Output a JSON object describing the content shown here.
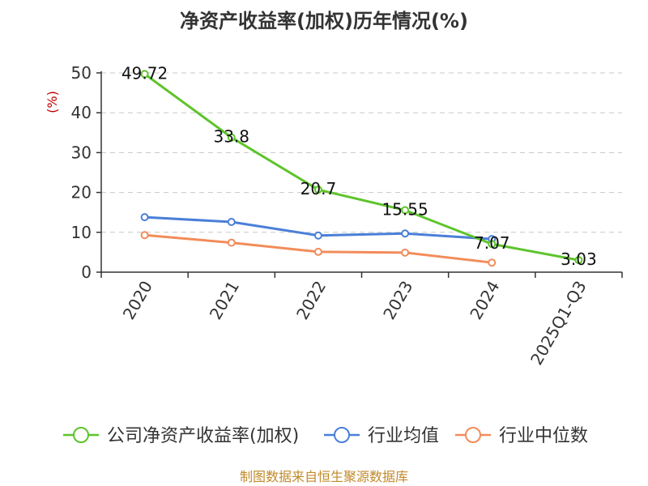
{
  "chart_data": {
    "type": "line",
    "title": "净资产收益率(加权)历年情况(%)",
    "ylabel": "(%)",
    "xlabel": "",
    "categories": [
      "2020",
      "2021",
      "2022",
      "2023",
      "2024",
      "2025Q1-Q3"
    ],
    "ylim": [
      0,
      50
    ],
    "yticks": [
      0,
      10,
      20,
      30,
      40,
      50
    ],
    "grid": true,
    "legend_position": "bottom",
    "series": [
      {
        "name": "公司净资产收益率(加权)",
        "color": "#5ec42b",
        "values": [
          49.72,
          33.8,
          20.7,
          15.55,
          7.07,
          3.03
        ],
        "labels": [
          "49.72",
          "33.8",
          "20.7",
          "15.55",
          "7.07",
          "3.03"
        ]
      },
      {
        "name": "行业均值",
        "color": "#4a7fd9",
        "values": [
          13.8,
          12.6,
          9.2,
          9.7,
          8.3,
          null
        ]
      },
      {
        "name": "行业中位数",
        "color": "#f28c5a",
        "values": [
          9.3,
          7.4,
          5.1,
          4.9,
          2.4,
          null
        ]
      }
    ]
  },
  "footer": {
    "source": "制图数据来自恒生聚源数据库"
  }
}
